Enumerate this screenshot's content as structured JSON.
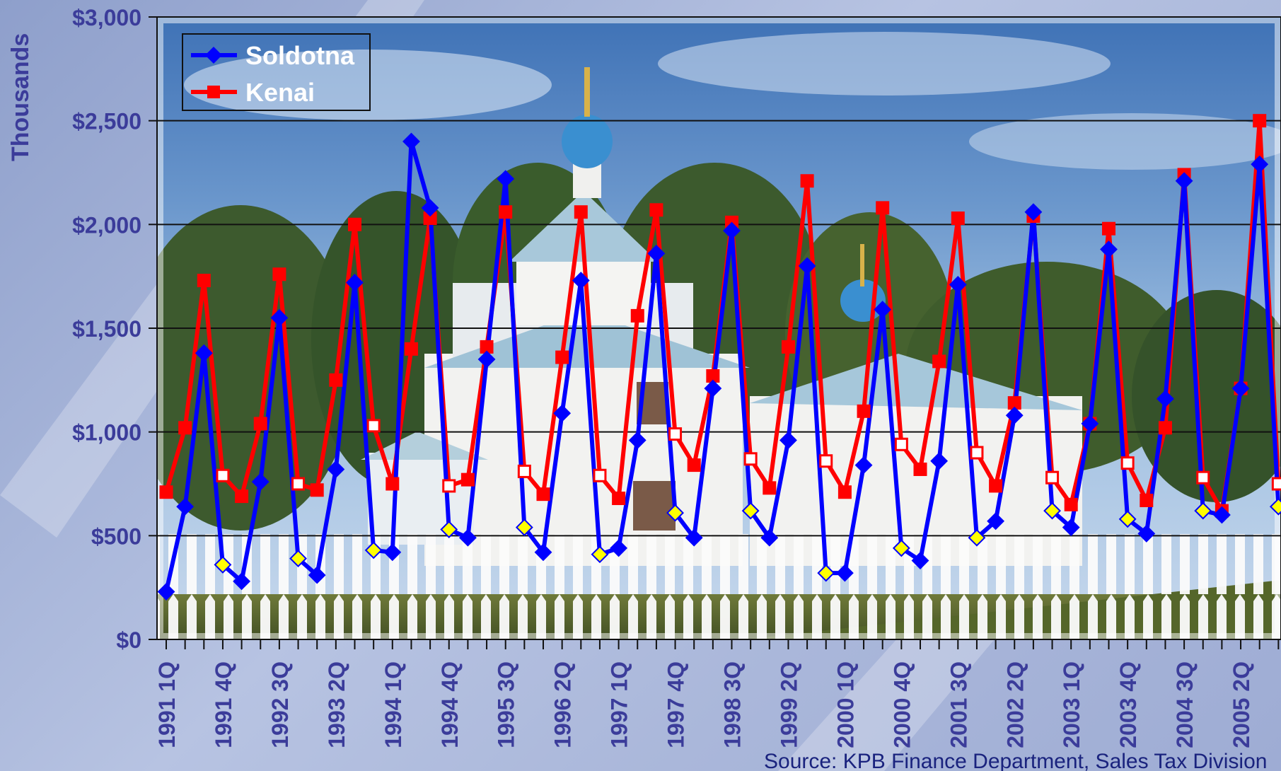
{
  "chart_data": {
    "type": "line",
    "ylabel": "Thousands",
    "ylim": [
      0,
      3000
    ],
    "y_ticks": [
      "$0",
      "$500",
      "$1,000",
      "$1,500",
      "$2,000",
      "$2,500",
      "$3,000"
    ],
    "grid": true,
    "legend_position": "top-left",
    "categories": [
      "1991 1Q",
      "1991 2Q",
      "1991 3Q",
      "1991 4Q",
      "1992 1Q",
      "1992 2Q",
      "1992 3Q",
      "1992 4Q",
      "1993 1Q",
      "1993 2Q",
      "1993 3Q",
      "1993 4Q",
      "1994 1Q",
      "1994 2Q",
      "1994 3Q",
      "1994 4Q",
      "1995 1Q",
      "1995 2Q",
      "1995 3Q",
      "1995 4Q",
      "1996 1Q",
      "1996 2Q",
      "1996 3Q",
      "1996 4Q",
      "1997 1Q",
      "1997 2Q",
      "1997 3Q",
      "1997 4Q",
      "1998 1Q",
      "1998 2Q",
      "1998 3Q",
      "1998 4Q",
      "1999 1Q",
      "1999 2Q",
      "1999 3Q",
      "1999 4Q",
      "2000 1Q",
      "2000 2Q",
      "2000 3Q",
      "2000 4Q",
      "2001 1Q",
      "2001 2Q",
      "2001 3Q",
      "2001 4Q",
      "2002 1Q",
      "2002 2Q",
      "2002 3Q",
      "2002 4Q",
      "2003 1Q",
      "2003 2Q",
      "2003 3Q",
      "2003 4Q",
      "2004 1Q",
      "2004 2Q",
      "2004 3Q",
      "2004 4Q",
      "2005 1Q",
      "2005 2Q",
      "2005 3Q",
      "2005 4Q"
    ],
    "x_tick_labels": [
      "1991 1Q",
      "1991 4Q",
      "1992 3Q",
      "1993 2Q",
      "1994 1Q",
      "1994 4Q",
      "1995 3Q",
      "1996 2Q",
      "1997 1Q",
      "1997 4Q",
      "1998 3Q",
      "1999 2Q",
      "2000 1Q",
      "2000 4Q",
      "2001 3Q",
      "2002 2Q",
      "2003 1Q",
      "2003 4Q",
      "2004 3Q",
      "2005 2Q"
    ],
    "series": [
      {
        "name": "Soldotna",
        "color": "#0000ff",
        "values": [
          230,
          640,
          1380,
          360,
          280,
          760,
          1550,
          390,
          310,
          820,
          1720,
          430,
          420,
          2400,
          2080,
          530,
          490,
          1350,
          2220,
          540,
          420,
          1090,
          1730,
          410,
          440,
          960,
          1860,
          610,
          490,
          1210,
          1970,
          620,
          490,
          960,
          1800,
          320,
          320,
          840,
          1590,
          440,
          380,
          860,
          1710,
          490,
          570,
          1080,
          2060,
          620,
          540,
          1040,
          1880,
          580,
          510,
          1160,
          2210,
          620,
          600,
          1210,
          2290,
          640
        ]
      },
      {
        "name": "Kenai",
        "color": "#ff0000",
        "values": [
          710,
          1020,
          1730,
          790,
          690,
          1040,
          1760,
          750,
          720,
          1250,
          2000,
          1030,
          750,
          1400,
          2030,
          740,
          770,
          1410,
          2060,
          810,
          700,
          1360,
          2060,
          790,
          680,
          1560,
          2070,
          990,
          840,
          1270,
          2010,
          870,
          730,
          1410,
          2210,
          860,
          710,
          1100,
          2080,
          940,
          820,
          1340,
          2030,
          900,
          740,
          1140,
          2040,
          780,
          650,
          1040,
          1980,
          850,
          670,
          1020,
          2240,
          780,
          620,
          1210,
          2500,
          750
        ]
      }
    ]
  },
  "source_note": "Source: KPB Finance Department, Sales Tax Division"
}
